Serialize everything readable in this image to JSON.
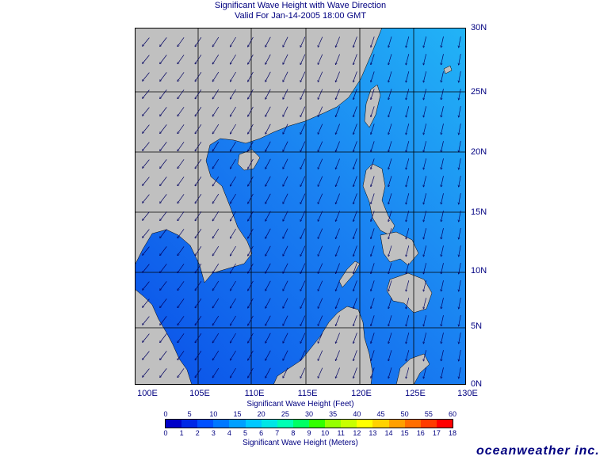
{
  "title_line1": "Significant Wave Height with Wave Direction",
  "title_line2": "Valid For Jan-14-2005 18:00 GMT",
  "lat_labels": [
    "30N",
    "25N",
    "20N",
    "15N",
    "10N",
    "5N",
    "0N"
  ],
  "lon_labels": [
    "100E",
    "105E",
    "110E",
    "115E",
    "120E",
    "125E",
    "130E"
  ],
  "feet_title": "Significant Wave Height (Feet)",
  "meters_title": "Significant Wave Height (Meters)",
  "feet_ticks": [
    "0",
    "5",
    "10",
    "15",
    "20",
    "25",
    "30",
    "35",
    "40",
    "45",
    "50",
    "55",
    "60"
  ],
  "meter_ticks": [
    "0",
    "1",
    "2",
    "3",
    "4",
    "5",
    "6",
    "7",
    "8",
    "9",
    "10",
    "11",
    "12",
    "13",
    "14",
    "15",
    "16",
    "17",
    "18"
  ],
  "color_scale": [
    "#0000c8",
    "#0028e6",
    "#0050ff",
    "#0078ff",
    "#00a0ff",
    "#00c8ff",
    "#00e6e6",
    "#00ffb4",
    "#00ff64",
    "#32ff00",
    "#96ff00",
    "#c8ff00",
    "#ffff00",
    "#ffd200",
    "#ffa000",
    "#ff6e00",
    "#ff3c00",
    "#ff0000"
  ],
  "colors": {
    "land": "#c0c0c0",
    "sea_deep": "#0a46e6",
    "sea_mid": "#1a78f0",
    "sea_light": "#1ea8f5",
    "arrows": "#000060"
  },
  "logo": "oceanweather inc."
}
